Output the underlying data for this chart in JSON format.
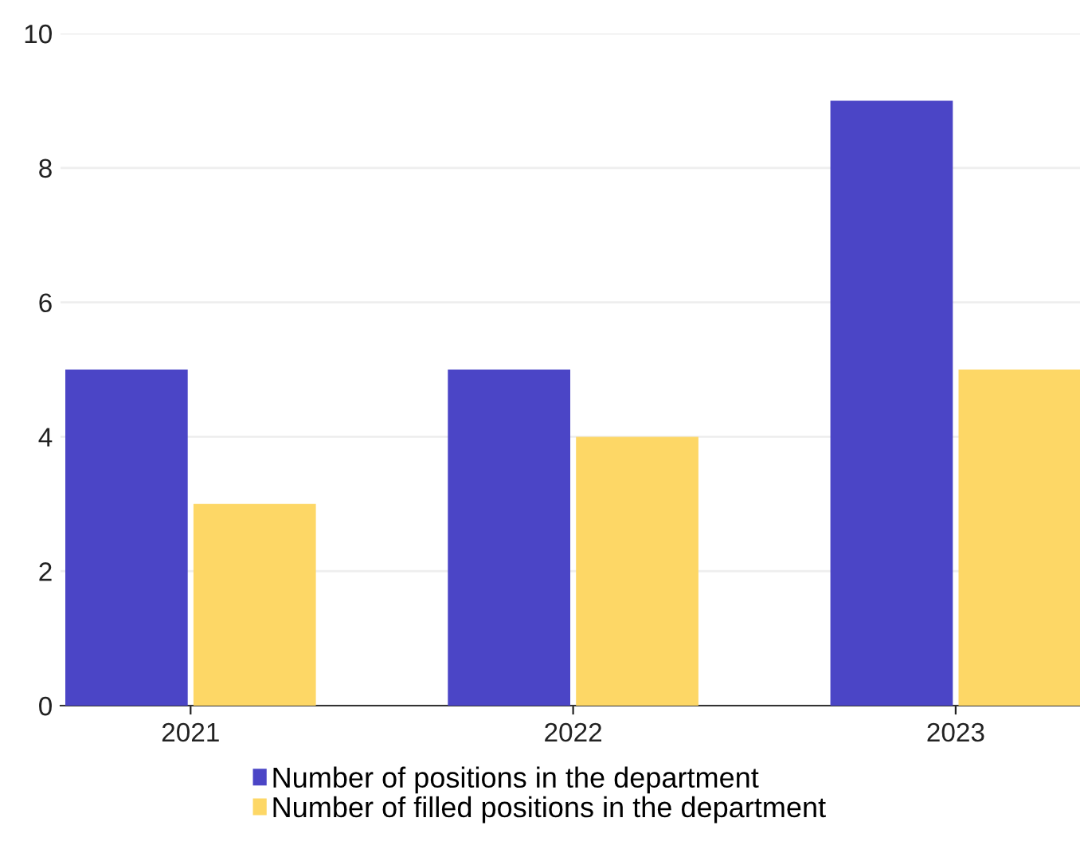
{
  "chart_data": {
    "type": "bar",
    "categories": [
      "2021",
      "2022",
      "2023"
    ],
    "series": [
      {
        "name": "Number of positions in the department",
        "color": "#4b45c6",
        "values": [
          5,
          5,
          9
        ]
      },
      {
        "name": "Number of filled positions in the department",
        "color": "#fdd766",
        "values": [
          3,
          4,
          5
        ]
      }
    ],
    "ylim": [
      0,
      10
    ],
    "yticks": [
      0,
      2,
      4,
      6,
      8,
      10
    ],
    "grid": "y",
    "legend": "bottom"
  }
}
